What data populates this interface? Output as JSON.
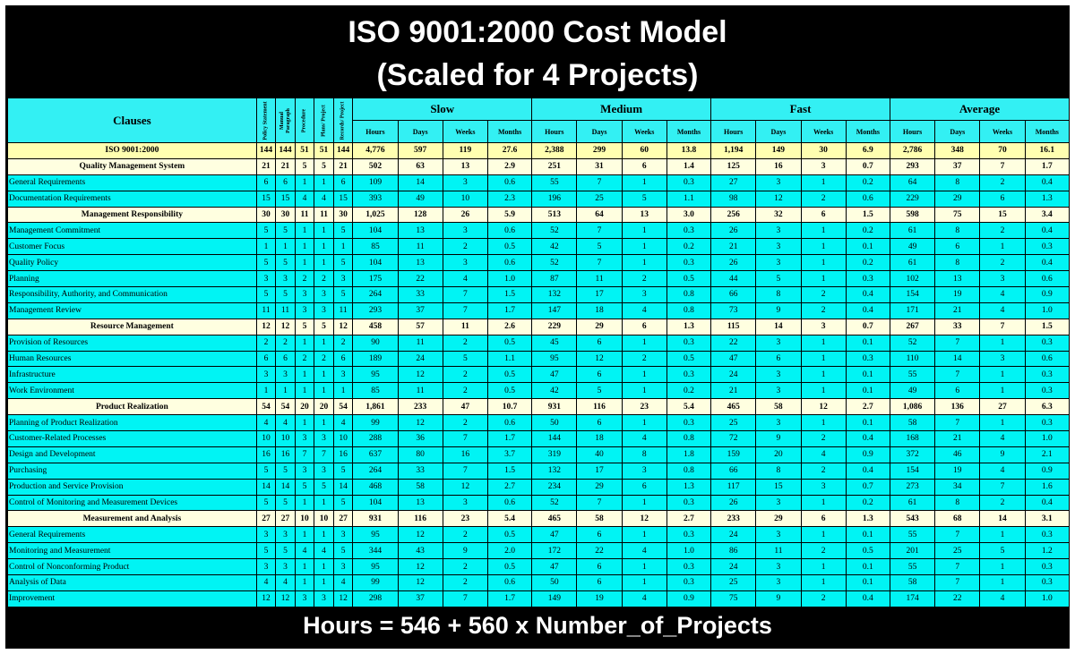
{
  "title": {
    "line1": "ISO 9001:2000 Cost Model",
    "line2": "(Scaled for 4 Projects)"
  },
  "header": {
    "clauses": "Clauses",
    "doc_types": [
      "Policy Statement",
      "Manual Paragraph",
      "Procedure",
      "Plans/ Project",
      "Records/ Project"
    ],
    "groups": [
      "Slow",
      "Medium",
      "Fast",
      "Average"
    ],
    "units": [
      "Hours",
      "Days",
      "Weeks",
      "Months"
    ]
  },
  "rows": [
    {
      "kind": "total",
      "name": "ISO 9001:2000",
      "v": [
        "144",
        "144",
        "51",
        "51",
        "144",
        "4,776",
        "597",
        "119",
        "27.6",
        "2,388",
        "299",
        "60",
        "13.8",
        "1,194",
        "149",
        "30",
        "6.9",
        "2,786",
        "348",
        "70",
        "16.1"
      ]
    },
    {
      "kind": "section",
      "name": "Quality Management System",
      "v": [
        "21",
        "21",
        "5",
        "5",
        "21",
        "502",
        "63",
        "13",
        "2.9",
        "251",
        "31",
        "6",
        "1.4",
        "125",
        "16",
        "3",
        "0.7",
        "293",
        "37",
        "7",
        "1.7"
      ]
    },
    {
      "kind": "clause",
      "name": "General Requirements",
      "v": [
        "6",
        "6",
        "1",
        "1",
        "6",
        "109",
        "14",
        "3",
        "0.6",
        "55",
        "7",
        "1",
        "0.3",
        "27",
        "3",
        "1",
        "0.2",
        "64",
        "8",
        "2",
        "0.4"
      ]
    },
    {
      "kind": "clause",
      "name": "Documentation Requirements",
      "v": [
        "15",
        "15",
        "4",
        "4",
        "15",
        "393",
        "49",
        "10",
        "2.3",
        "196",
        "25",
        "5",
        "1.1",
        "98",
        "12",
        "2",
        "0.6",
        "229",
        "29",
        "6",
        "1.3"
      ]
    },
    {
      "kind": "section",
      "name": "Management Responsibility",
      "v": [
        "30",
        "30",
        "11",
        "11",
        "30",
        "1,025",
        "128",
        "26",
        "5.9",
        "513",
        "64",
        "13",
        "3.0",
        "256",
        "32",
        "6",
        "1.5",
        "598",
        "75",
        "15",
        "3.4"
      ]
    },
    {
      "kind": "clause",
      "name": "Management Commitment",
      "v": [
        "5",
        "5",
        "1",
        "1",
        "5",
        "104",
        "13",
        "3",
        "0.6",
        "52",
        "7",
        "1",
        "0.3",
        "26",
        "3",
        "1",
        "0.2",
        "61",
        "8",
        "2",
        "0.4"
      ]
    },
    {
      "kind": "clause",
      "name": "Customer Focus",
      "v": [
        "1",
        "1",
        "1",
        "1",
        "1",
        "85",
        "11",
        "2",
        "0.5",
        "42",
        "5",
        "1",
        "0.2",
        "21",
        "3",
        "1",
        "0.1",
        "49",
        "6",
        "1",
        "0.3"
      ]
    },
    {
      "kind": "clause",
      "name": "Quality Policy",
      "v": [
        "5",
        "5",
        "1",
        "1",
        "5",
        "104",
        "13",
        "3",
        "0.6",
        "52",
        "7",
        "1",
        "0.3",
        "26",
        "3",
        "1",
        "0.2",
        "61",
        "8",
        "2",
        "0.4"
      ]
    },
    {
      "kind": "clause",
      "name": "Planning",
      "v": [
        "3",
        "3",
        "2",
        "2",
        "3",
        "175",
        "22",
        "4",
        "1.0",
        "87",
        "11",
        "2",
        "0.5",
        "44",
        "5",
        "1",
        "0.3",
        "102",
        "13",
        "3",
        "0.6"
      ]
    },
    {
      "kind": "clause",
      "name": "Responsibility, Authority, and Communication",
      "v": [
        "5",
        "5",
        "3",
        "3",
        "5",
        "264",
        "33",
        "7",
        "1.5",
        "132",
        "17",
        "3",
        "0.8",
        "66",
        "8",
        "2",
        "0.4",
        "154",
        "19",
        "4",
        "0.9"
      ]
    },
    {
      "kind": "clause",
      "name": "Management Review",
      "v": [
        "11",
        "11",
        "3",
        "3",
        "11",
        "293",
        "37",
        "7",
        "1.7",
        "147",
        "18",
        "4",
        "0.8",
        "73",
        "9",
        "2",
        "0.4",
        "171",
        "21",
        "4",
        "1.0"
      ]
    },
    {
      "kind": "section",
      "name": "Resource Management",
      "v": [
        "12",
        "12",
        "5",
        "5",
        "12",
        "458",
        "57",
        "11",
        "2.6",
        "229",
        "29",
        "6",
        "1.3",
        "115",
        "14",
        "3",
        "0.7",
        "267",
        "33",
        "7",
        "1.5"
      ]
    },
    {
      "kind": "clause",
      "name": "Provision of Resources",
      "v": [
        "2",
        "2",
        "1",
        "1",
        "2",
        "90",
        "11",
        "2",
        "0.5",
        "45",
        "6",
        "1",
        "0.3",
        "22",
        "3",
        "1",
        "0.1",
        "52",
        "7",
        "1",
        "0.3"
      ]
    },
    {
      "kind": "clause",
      "name": "Human Resources",
      "v": [
        "6",
        "6",
        "2",
        "2",
        "6",
        "189",
        "24",
        "5",
        "1.1",
        "95",
        "12",
        "2",
        "0.5",
        "47",
        "6",
        "1",
        "0.3",
        "110",
        "14",
        "3",
        "0.6"
      ]
    },
    {
      "kind": "clause",
      "name": "Infrastructure",
      "v": [
        "3",
        "3",
        "1",
        "1",
        "3",
        "95",
        "12",
        "2",
        "0.5",
        "47",
        "6",
        "1",
        "0.3",
        "24",
        "3",
        "1",
        "0.1",
        "55",
        "7",
        "1",
        "0.3"
      ]
    },
    {
      "kind": "clause",
      "name": "Work Environment",
      "v": [
        "1",
        "1",
        "1",
        "1",
        "1",
        "85",
        "11",
        "2",
        "0.5",
        "42",
        "5",
        "1",
        "0.2",
        "21",
        "3",
        "1",
        "0.1",
        "49",
        "6",
        "1",
        "0.3"
      ]
    },
    {
      "kind": "section",
      "name": "Product Realization",
      "v": [
        "54",
        "54",
        "20",
        "20",
        "54",
        "1,861",
        "233",
        "47",
        "10.7",
        "931",
        "116",
        "23",
        "5.4",
        "465",
        "58",
        "12",
        "2.7",
        "1,086",
        "136",
        "27",
        "6.3"
      ]
    },
    {
      "kind": "clause",
      "name": "Planning of Product Realization",
      "v": [
        "4",
        "4",
        "1",
        "1",
        "4",
        "99",
        "12",
        "2",
        "0.6",
        "50",
        "6",
        "1",
        "0.3",
        "25",
        "3",
        "1",
        "0.1",
        "58",
        "7",
        "1",
        "0.3"
      ]
    },
    {
      "kind": "clause",
      "name": "Customer-Related Processes",
      "v": [
        "10",
        "10",
        "3",
        "3",
        "10",
        "288",
        "36",
        "7",
        "1.7",
        "144",
        "18",
        "4",
        "0.8",
        "72",
        "9",
        "2",
        "0.4",
        "168",
        "21",
        "4",
        "1.0"
      ]
    },
    {
      "kind": "clause",
      "name": "Design and Development",
      "v": [
        "16",
        "16",
        "7",
        "7",
        "16",
        "637",
        "80",
        "16",
        "3.7",
        "319",
        "40",
        "8",
        "1.8",
        "159",
        "20",
        "4",
        "0.9",
        "372",
        "46",
        "9",
        "2.1"
      ]
    },
    {
      "kind": "clause",
      "name": "Purchasing",
      "v": [
        "5",
        "5",
        "3",
        "3",
        "5",
        "264",
        "33",
        "7",
        "1.5",
        "132",
        "17",
        "3",
        "0.8",
        "66",
        "8",
        "2",
        "0.4",
        "154",
        "19",
        "4",
        "0.9"
      ]
    },
    {
      "kind": "clause",
      "name": "Production and Service Provision",
      "v": [
        "14",
        "14",
        "5",
        "5",
        "14",
        "468",
        "58",
        "12",
        "2.7",
        "234",
        "29",
        "6",
        "1.3",
        "117",
        "15",
        "3",
        "0.7",
        "273",
        "34",
        "7",
        "1.6"
      ]
    },
    {
      "kind": "clause",
      "name": "Control of Monitoring and Measurement Devices",
      "v": [
        "5",
        "5",
        "1",
        "1",
        "5",
        "104",
        "13",
        "3",
        "0.6",
        "52",
        "7",
        "1",
        "0.3",
        "26",
        "3",
        "1",
        "0.2",
        "61",
        "8",
        "2",
        "0.4"
      ]
    },
    {
      "kind": "section",
      "name": "Measurement and Analysis",
      "v": [
        "27",
        "27",
        "10",
        "10",
        "27",
        "931",
        "116",
        "23",
        "5.4",
        "465",
        "58",
        "12",
        "2.7",
        "233",
        "29",
        "6",
        "1.3",
        "543",
        "68",
        "14",
        "3.1"
      ]
    },
    {
      "kind": "clause",
      "name": "General Requirements",
      "v": [
        "3",
        "3",
        "1",
        "1",
        "3",
        "95",
        "12",
        "2",
        "0.5",
        "47",
        "6",
        "1",
        "0.3",
        "24",
        "3",
        "1",
        "0.1",
        "55",
        "7",
        "1",
        "0.3"
      ]
    },
    {
      "kind": "clause",
      "name": "Monitoring and Measurement",
      "v": [
        "5",
        "5",
        "4",
        "4",
        "5",
        "344",
        "43",
        "9",
        "2.0",
        "172",
        "22",
        "4",
        "1.0",
        "86",
        "11",
        "2",
        "0.5",
        "201",
        "25",
        "5",
        "1.2"
      ]
    },
    {
      "kind": "clause",
      "name": "Control of Nonconforming Product",
      "v": [
        "3",
        "3",
        "1",
        "1",
        "3",
        "95",
        "12",
        "2",
        "0.5",
        "47",
        "6",
        "1",
        "0.3",
        "24",
        "3",
        "1",
        "0.1",
        "55",
        "7",
        "1",
        "0.3"
      ]
    },
    {
      "kind": "clause",
      "name": "Analysis of Data",
      "v": [
        "4",
        "4",
        "1",
        "1",
        "4",
        "99",
        "12",
        "2",
        "0.6",
        "50",
        "6",
        "1",
        "0.3",
        "25",
        "3",
        "1",
        "0.1",
        "58",
        "7",
        "1",
        "0.3"
      ]
    },
    {
      "kind": "clause",
      "name": "Improvement",
      "v": [
        "12",
        "12",
        "3",
        "3",
        "12",
        "298",
        "37",
        "7",
        "1.7",
        "149",
        "19",
        "4",
        "0.9",
        "75",
        "9",
        "2",
        "0.4",
        "174",
        "22",
        "4",
        "1.0"
      ]
    }
  ],
  "footer": {
    "formula": "Hours = 546 + 560 x Number_of_Projects"
  },
  "colors": {
    "header_bg": "#33f0f3",
    "clause_bg": "#00f4f4",
    "section_bg": "#ffffe0",
    "total_bg": "#ffffb0",
    "frame_bg": "#000000"
  }
}
